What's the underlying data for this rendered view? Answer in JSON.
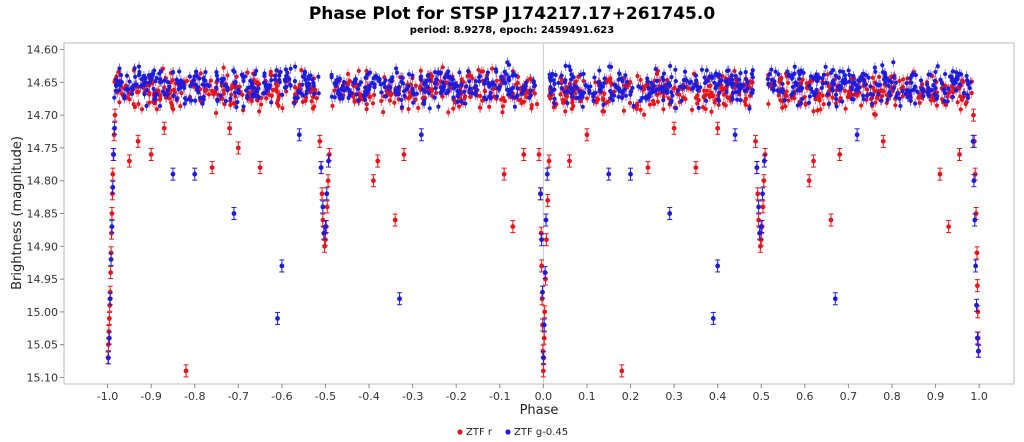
{
  "chart_data": {
    "type": "scatter",
    "title": "Phase Plot for STSP J174217.17+261745.0",
    "subtitle": "period: 8.9278, epoch: 2459491.623",
    "xlabel": "Phase",
    "ylabel": "Brightness (magnitude)",
    "xlim": [
      -1.1,
      1.08
    ],
    "ylim": [
      15.11,
      14.59
    ],
    "y_inverted": true,
    "x_ticks": [
      -1.0,
      -0.9,
      -0.8,
      -0.7,
      -0.6,
      -0.5,
      -0.4,
      -0.3,
      -0.2,
      -0.1,
      0.0,
      0.1,
      0.2,
      0.3,
      0.4,
      0.5,
      0.6,
      0.7,
      0.8,
      0.9,
      1.0
    ],
    "x_tick_labels": [
      "-1.0",
      "-0.9",
      "-0.8",
      "-0.7",
      "-0.6",
      "-0.5",
      "-0.4",
      "-0.3",
      "-0.2",
      "-0.1",
      "0.0",
      "0.1",
      "0.2",
      "0.3",
      "0.4",
      "0.5",
      "0.6",
      "0.7",
      "0.8",
      "0.9",
      "1.0"
    ],
    "y_ticks": [
      14.6,
      14.65,
      14.7,
      14.75,
      14.8,
      14.85,
      14.9,
      14.95,
      15.0,
      15.05,
      15.1
    ],
    "y_tick_labels": [
      "14.60",
      "14.65",
      "14.70",
      "14.75",
      "14.80",
      "14.85",
      "14.90",
      "14.95",
      "15.00",
      "15.05",
      "15.10"
    ],
    "grid": false,
    "reference_lines_x": [
      0.0
    ],
    "legend_position": "bottom-center",
    "error_bars": true,
    "series": [
      {
        "name": "ZTF r",
        "color": "#e8141c",
        "points": [
          [
            -0.999,
            15.07
          ],
          [
            -0.998,
            15.05
          ],
          [
            -0.997,
            15.03
          ],
          [
            -0.996,
            15.01
          ],
          [
            -0.995,
            14.99
          ],
          [
            -0.994,
            14.97
          ],
          [
            -0.993,
            14.94
          ],
          [
            -0.992,
            14.91
          ],
          [
            -0.991,
            14.88
          ],
          [
            -0.99,
            14.85
          ],
          [
            -0.989,
            14.82
          ],
          [
            -0.988,
            14.79
          ],
          [
            -0.987,
            14.76
          ],
          [
            -0.985,
            14.73
          ],
          [
            -0.983,
            14.7
          ],
          [
            -0.95,
            14.77
          ],
          [
            -0.93,
            14.74
          ],
          [
            -0.9,
            14.76
          ],
          [
            -0.87,
            14.72
          ],
          [
            -0.82,
            15.09
          ],
          [
            -0.76,
            14.78
          ],
          [
            -0.72,
            14.72
          ],
          [
            -0.7,
            14.75
          ],
          [
            -0.65,
            14.78
          ],
          [
            -0.513,
            14.74
          ],
          [
            -0.51,
            14.78
          ],
          [
            -0.508,
            14.82
          ],
          [
            -0.506,
            14.86
          ],
          [
            -0.504,
            14.88
          ],
          [
            -0.502,
            14.9
          ],
          [
            -0.5,
            14.89
          ],
          [
            -0.498,
            14.87
          ],
          [
            -0.496,
            14.84
          ],
          [
            -0.494,
            14.8
          ],
          [
            -0.491,
            14.76
          ],
          [
            -0.39,
            14.8
          ],
          [
            -0.38,
            14.77
          ],
          [
            -0.34,
            14.86
          ],
          [
            -0.32,
            14.76
          ],
          [
            -0.09,
            14.79
          ],
          [
            -0.07,
            14.87
          ],
          [
            -0.045,
            14.76
          ],
          [
            -0.01,
            14.76
          ],
          [
            -0.007,
            14.82
          ],
          [
            -0.005,
            14.88
          ],
          [
            -0.004,
            14.93
          ],
          [
            -0.003,
            14.98
          ],
          [
            -0.002,
            15.02
          ],
          [
            -0.001,
            15.06
          ],
          [
            0.0,
            15.09
          ],
          [
            0.001,
            15.07
          ],
          [
            0.002,
            15.04
          ],
          [
            0.003,
            15.0
          ],
          [
            0.005,
            14.95
          ],
          [
            0.007,
            14.89
          ],
          [
            0.01,
            14.83
          ],
          [
            0.013,
            14.77
          ],
          [
            0.06,
            14.77
          ],
          [
            0.1,
            14.73
          ],
          [
            0.18,
            15.09
          ],
          [
            0.24,
            14.78
          ],
          [
            0.3,
            14.72
          ],
          [
            0.35,
            14.78
          ],
          [
            0.4,
            14.72
          ],
          [
            0.487,
            14.74
          ],
          [
            0.49,
            14.78
          ],
          [
            0.492,
            14.82
          ],
          [
            0.494,
            14.86
          ],
          [
            0.496,
            14.88
          ],
          [
            0.498,
            14.9
          ],
          [
            0.5,
            14.89
          ],
          [
            0.502,
            14.87
          ],
          [
            0.504,
            14.84
          ],
          [
            0.506,
            14.8
          ],
          [
            0.509,
            14.76
          ],
          [
            0.61,
            14.8
          ],
          [
            0.62,
            14.77
          ],
          [
            0.66,
            14.86
          ],
          [
            0.68,
            14.76
          ],
          [
            0.78,
            14.74
          ],
          [
            0.91,
            14.79
          ],
          [
            0.93,
            14.87
          ],
          [
            0.955,
            14.76
          ],
          [
            0.987,
            14.7
          ],
          [
            0.989,
            14.74
          ],
          [
            0.991,
            14.79
          ],
          [
            0.993,
            14.85
          ],
          [
            0.995,
            14.91
          ],
          [
            0.996,
            14.96
          ],
          [
            0.997,
            15.0
          ],
          [
            0.998,
            15.04
          ],
          [
            0.999,
            15.06
          ]
        ]
      },
      {
        "name": "ZTF g-0.45",
        "color": "#1c1cde",
        "points": [
          [
            -0.998,
            15.07
          ],
          [
            -0.996,
            15.04
          ],
          [
            -0.994,
            14.98
          ],
          [
            -0.992,
            14.92
          ],
          [
            -0.99,
            14.87
          ],
          [
            -0.988,
            14.81
          ],
          [
            -0.986,
            14.76
          ],
          [
            -0.984,
            14.72
          ],
          [
            -0.85,
            14.79
          ],
          [
            -0.8,
            14.79
          ],
          [
            -0.71,
            14.85
          ],
          [
            -0.61,
            15.01
          ],
          [
            -0.6,
            14.93
          ],
          [
            -0.56,
            14.73
          ],
          [
            -0.51,
            14.78
          ],
          [
            -0.506,
            14.84
          ],
          [
            -0.503,
            14.88
          ],
          [
            -0.5,
            14.87
          ],
          [
            -0.497,
            14.82
          ],
          [
            -0.493,
            14.77
          ],
          [
            -0.33,
            14.98
          ],
          [
            -0.28,
            14.73
          ],
          [
            -0.006,
            14.82
          ],
          [
            -0.004,
            14.89
          ],
          [
            -0.002,
            14.97
          ],
          [
            0.0,
            15.07
          ],
          [
            0.002,
            15.02
          ],
          [
            0.004,
            14.94
          ],
          [
            0.006,
            14.86
          ],
          [
            0.009,
            14.79
          ],
          [
            0.15,
            14.79
          ],
          [
            0.2,
            14.79
          ],
          [
            0.29,
            14.85
          ],
          [
            0.39,
            15.01
          ],
          [
            0.4,
            14.93
          ],
          [
            0.44,
            14.73
          ],
          [
            0.49,
            14.78
          ],
          [
            0.494,
            14.84
          ],
          [
            0.497,
            14.88
          ],
          [
            0.5,
            14.87
          ],
          [
            0.503,
            14.82
          ],
          [
            0.507,
            14.77
          ],
          [
            0.67,
            14.98
          ],
          [
            0.72,
            14.73
          ],
          [
            0.986,
            14.74
          ],
          [
            0.988,
            14.8
          ],
          [
            0.99,
            14.86
          ],
          [
            0.992,
            14.93
          ],
          [
            0.994,
            14.99
          ],
          [
            0.996,
            15.04
          ],
          [
            0.998,
            15.06
          ]
        ]
      }
    ]
  }
}
